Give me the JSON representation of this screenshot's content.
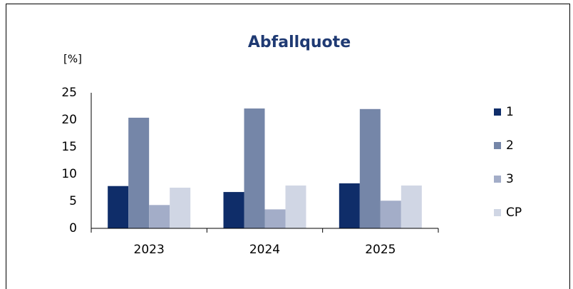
{
  "chart_data": {
    "type": "bar",
    "title": "Abfallquote",
    "y_label": "[%]",
    "categories": [
      "2023",
      "2024",
      "2025"
    ],
    "series": [
      {
        "name": "1",
        "color": "#0f2d69",
        "values": [
          7.8,
          6.7,
          8.3
        ]
      },
      {
        "name": "2",
        "color": "#7586a8",
        "values": [
          20.4,
          22.1,
          22.0
        ]
      },
      {
        "name": "3",
        "color": "#a3adc8",
        "values": [
          4.3,
          3.5,
          5.1
        ]
      },
      {
        "name": "CP",
        "color": "#d0d6e4",
        "values": [
          7.5,
          7.9,
          7.9
        ]
      }
    ],
    "ylim": [
      0,
      25
    ],
    "yticks": [
      0,
      5,
      10,
      15,
      20,
      25
    ],
    "grid": false,
    "legend": "right"
  }
}
